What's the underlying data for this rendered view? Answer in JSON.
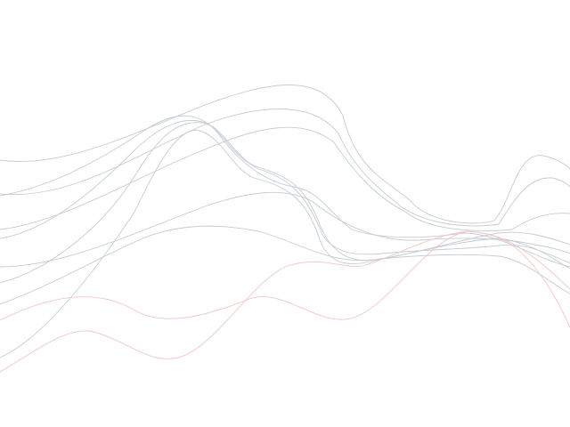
{
  "background": "#ffffff",
  "colors": {
    "grey_line": "#c5ccd3",
    "pink_line": "#f2c6c6"
  },
  "line_count": 11,
  "text_content": []
}
